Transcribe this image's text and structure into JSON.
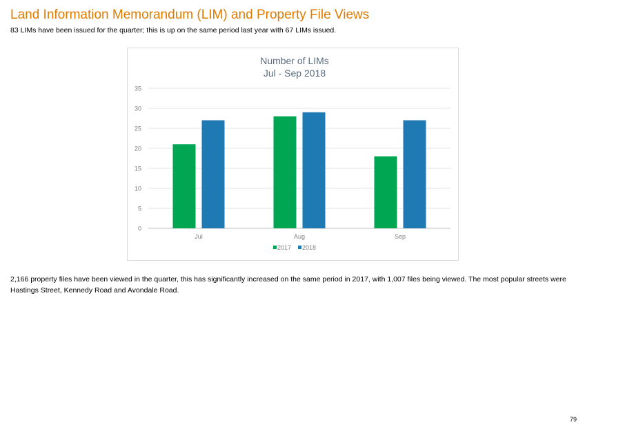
{
  "document": {
    "title": "Land Information Memorandum (LIM) and Property File Views",
    "intro": "83 LIMs have been issued for the quarter; this is up on the same period last year with 67 LIMs issued.",
    "paragraph": "2,166 property files have been viewed in the quarter, this has significantly increased on the same period in 2017, with 1,007 files being viewed. The most popular streets were Hastings Street, Kennedy Road and Avondale Road.",
    "page_number": "79"
  },
  "chart_data": {
    "type": "bar",
    "title": "Number of LIMs",
    "subtitle": "Jul - Sep 2018",
    "xlabel": "",
    "ylabel": "",
    "categories": [
      "Jul",
      "Aug",
      "Sep"
    ],
    "series": [
      {
        "name": "2017",
        "values": [
          21,
          28,
          18
        ],
        "color": "#00a651"
      },
      {
        "name": "2018",
        "values": [
          27,
          29,
          27
        ],
        "color": "#1f7ab4"
      }
    ],
    "ylim": [
      0,
      35
    ],
    "yticks": [
      "0",
      "5",
      "10",
      "15",
      "20",
      "25",
      "30",
      "35"
    ],
    "grid": true,
    "legend": "bottom"
  }
}
